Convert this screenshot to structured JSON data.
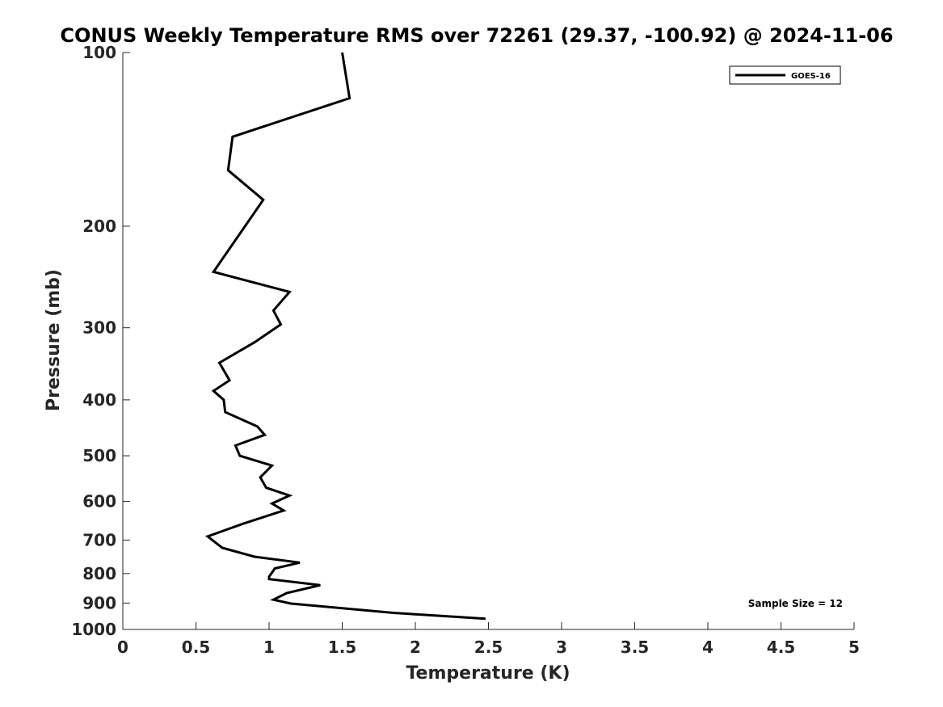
{
  "chart_data": {
    "type": "line",
    "title": "CONUS Weekly Temperature RMS over 72261 (29.37, -100.92) @ 2024-11-06",
    "xlabel": "Temperature (K)",
    "ylabel": "Pressure (mb)",
    "xlim": [
      0,
      5
    ],
    "ylim": [
      1000,
      100
    ],
    "yscale": "log",
    "grid": false,
    "legend_position": "top-right",
    "xticks": [
      0,
      0.5,
      1,
      1.5,
      2,
      2.5,
      3,
      3.5,
      4,
      4.5,
      5
    ],
    "xtick_labels": [
      "0",
      "0.5",
      "1",
      "1.5",
      "2",
      "2.5",
      "3",
      "3.5",
      "4",
      "4.5",
      "5"
    ],
    "yticks": [
      100,
      200,
      300,
      400,
      500,
      600,
      700,
      800,
      900,
      1000
    ],
    "ytick_labels": [
      "100",
      "200",
      "300",
      "400",
      "500",
      "600",
      "700",
      "800",
      "900",
      "1000"
    ],
    "annotation": "Sample Size = 12",
    "series": [
      {
        "name": "GOES-16",
        "color": "#000000",
        "points": [
          [
            1.5,
            100
          ],
          [
            1.55,
            120
          ],
          [
            0.75,
            140
          ],
          [
            0.72,
            160
          ],
          [
            0.96,
            180
          ],
          [
            0.62,
            240
          ],
          [
            1.14,
            260
          ],
          [
            1.03,
            280
          ],
          [
            1.08,
            296
          ],
          [
            0.9,
            318
          ],
          [
            0.66,
            345
          ],
          [
            0.73,
            370
          ],
          [
            0.62,
            386
          ],
          [
            0.69,
            400
          ],
          [
            0.7,
            420
          ],
          [
            0.92,
            445
          ],
          [
            0.97,
            460
          ],
          [
            0.77,
            480
          ],
          [
            0.8,
            500
          ],
          [
            1.02,
            520
          ],
          [
            0.94,
            545
          ],
          [
            0.98,
            568
          ],
          [
            1.14,
            586
          ],
          [
            1.02,
            605
          ],
          [
            1.1,
            622
          ],
          [
            0.82,
            656
          ],
          [
            0.58,
            690
          ],
          [
            0.68,
            722
          ],
          [
            0.9,
            748
          ],
          [
            1.21,
            766
          ],
          [
            1.04,
            784
          ],
          [
            1.0,
            810
          ],
          [
            1.0,
            818
          ],
          [
            1.35,
            838
          ],
          [
            1.12,
            865
          ],
          [
            1.03,
            888
          ],
          [
            1.15,
            902
          ],
          [
            1.85,
            936
          ],
          [
            2.48,
            958
          ]
        ]
      }
    ]
  }
}
